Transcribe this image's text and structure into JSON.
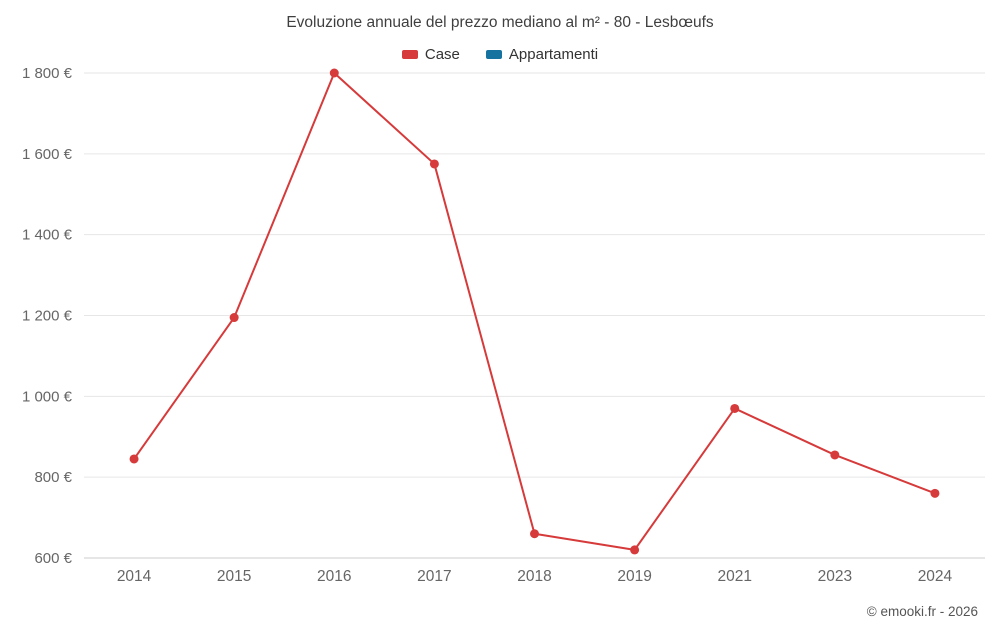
{
  "title": "Evoluzione annuale del prezzo mediano al m² - 80 - Lesbœufs",
  "legend": [
    {
      "label": "Case",
      "color": "#d63a3a"
    },
    {
      "label": "Appartamenti",
      "color": "#16729e"
    }
  ],
  "footer": "© emooki.fr - 2026",
  "chart_data": {
    "type": "line",
    "categories": [
      "2014",
      "2015",
      "2016",
      "2017",
      "2018",
      "2019",
      "2021",
      "2023",
      "2024"
    ],
    "series": [
      {
        "name": "Case",
        "color": "#d63a3a",
        "values": [
          845,
          1195,
          1800,
          1575,
          660,
          620,
          970,
          855,
          760
        ]
      },
      {
        "name": "Appartamenti",
        "color": "#16729e",
        "values": []
      }
    ],
    "title": "Evoluzione annuale del prezzo mediano al m² - 80 - Lesbœufs",
    "xlabel": "",
    "ylabel": "",
    "y_unit": "€",
    "ylim": [
      600,
      1800
    ],
    "ytick_step": 200,
    "grid": true,
    "legend_position": "top",
    "grid_color": "#e6e6e6",
    "axis_label_color": "#666666"
  }
}
